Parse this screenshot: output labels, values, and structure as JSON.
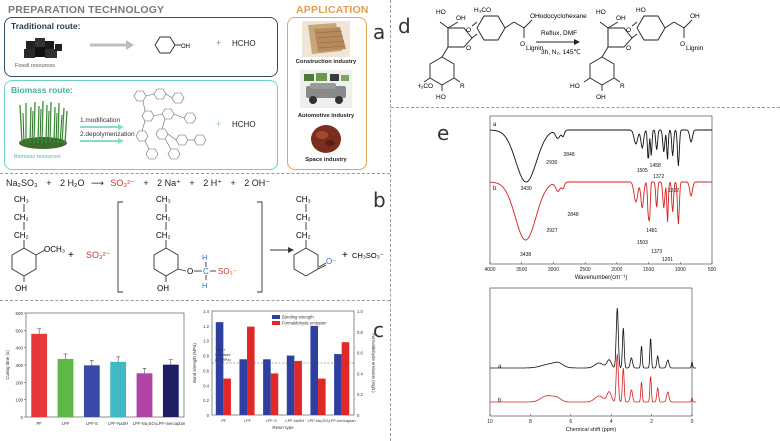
{
  "panel_labels": {
    "a": "a",
    "b": "b",
    "c": "c",
    "d": "d",
    "e": "e"
  },
  "panel_a": {
    "prep_title": "PREPARATION TECHNOLOGY",
    "app_title": "APPLICATION",
    "traditional": {
      "title": "Traditional route:",
      "source_caption": "Fossil resources",
      "plus": "+",
      "product": "HCHO"
    },
    "biomass": {
      "title": "Biomass route:",
      "step1": "1.modification",
      "step2": "2.depolymerization",
      "source_caption": "Biomass resources",
      "plus": "+",
      "product": "HCHO"
    },
    "applications": [
      "Construction industry",
      "Automotive industry",
      "Space industry"
    ]
  },
  "panel_b": {
    "eq1": {
      "reactant1": "Na₂SO₃",
      "plus1": "+",
      "reactant2": "2 H₂O",
      "product1": "SO₃²⁻",
      "plus2": "+",
      "product2": "2 Na⁺",
      "plus3": "+",
      "product3": "2 H⁺",
      "plus4": "+",
      "product4": "2 OH⁻"
    },
    "labels": {
      "ch3": "CH₃",
      "ch2": "CH₂",
      "och3": "OCH₃",
      "oh": "OH",
      "plus": "+",
      "sulfite": "SO₃²⁻",
      "h": "H",
      "c": "C",
      "o": "O",
      "so3minus": "SO₃⁻",
      "ominus": "O⁻",
      "byproduct": "CH₃SO₃⁻"
    }
  },
  "panel_c": {
    "chart_data": [
      {
        "type": "bar",
        "title": "",
        "ylabel": "Curing time (s)",
        "categories": [
          "PF",
          "LPF",
          "LPF-S",
          "LPF-NaSH",
          "LPF-Na₂SO₃",
          "LPF-mercaptan"
        ],
        "values": [
          480,
          335,
          298,
          318,
          252,
          302
        ],
        "ylim": [
          0,
          600
        ],
        "yticks": [
          "0",
          "100",
          "200",
          "300",
          "400",
          "500",
          "600"
        ],
        "colors": [
          "#e8373c",
          "#5fb845",
          "#3b4aa8",
          "#3fb9c4",
          "#b044a7",
          "#1e1f63"
        ]
      },
      {
        "type": "bar",
        "xlabel": "Resin type",
        "ylabel": "Bond strength (MPa)",
        "ylabel_right": "Formaldehyde emission (mg/L)",
        "categories": [
          "PF",
          "LPF",
          "LPF-S",
          "LPF-NaSH",
          "LPF-Na₂SO₃",
          "LPF-mercaptan"
        ],
        "series": [
          {
            "name": "Bonding strength",
            "values": [
              1.25,
              0.75,
              0.75,
              0.8,
              1.2,
              0.82
            ],
            "color": "#2d3fa0"
          },
          {
            "name": "Formaldehyde emission",
            "values": [
              0.35,
              0.85,
              0.4,
              0.52,
              0.35,
              0.7
            ],
            "color": "#e02828"
          }
        ],
        "ylim": [
          0,
          1.4
        ],
        "ylim_right": [
          0,
          1.0
        ],
        "yticks": [
          "0",
          "0.2",
          "0.4",
          "0.6",
          "0.8",
          "1.0",
          "1.2",
          "1.4"
        ],
        "yticks_right": [
          "0",
          "0.2",
          "0.4",
          "0.6",
          "0.8",
          "1.0"
        ],
        "reference_line": 0.7,
        "annotation": [
          "Type I",
          "Standard",
          "(0.7MPa)"
        ]
      }
    ]
  },
  "panel_d": {
    "reagent": "Iodocyclohexane",
    "conditions1": "Reflux, DMF",
    "conditions2": "3h, N₂, 145℃",
    "labels": {
      "ho": "HO",
      "oh": "OH",
      "h3co": "H₃CO",
      "o": "O",
      "r": "R",
      "lignin": "Lignin"
    }
  },
  "panel_e": {
    "chart_data": [
      {
        "type": "line",
        "xlabel": "Wavenumber(cm⁻¹)",
        "xlim": [
          4000,
          500
        ],
        "xticks": [
          "4000",
          "3500",
          "3000",
          "2500",
          "2000",
          "1500",
          "1000",
          "500"
        ],
        "series": [
          {
            "name": "a",
            "color": "#111111",
            "peaks": [
              "3430",
              "2930",
              "2848",
              "1505",
              "1458",
              "1372",
              "1202"
            ]
          },
          {
            "name": "b",
            "color": "#d62020",
            "peaks": [
              "3438",
              "2927",
              "2848",
              "1503",
              "1481",
              "1373",
              "1201"
            ]
          }
        ]
      },
      {
        "type": "line",
        "xlabel": "Chemical shift (ppm)",
        "xlim": [
          10,
          0
        ],
        "xticks": [
          "10",
          "8",
          "6",
          "4",
          "2",
          "0"
        ],
        "series": [
          {
            "name": "a",
            "color": "#111111"
          },
          {
            "name": "b",
            "color": "#d62020"
          }
        ]
      }
    ]
  }
}
